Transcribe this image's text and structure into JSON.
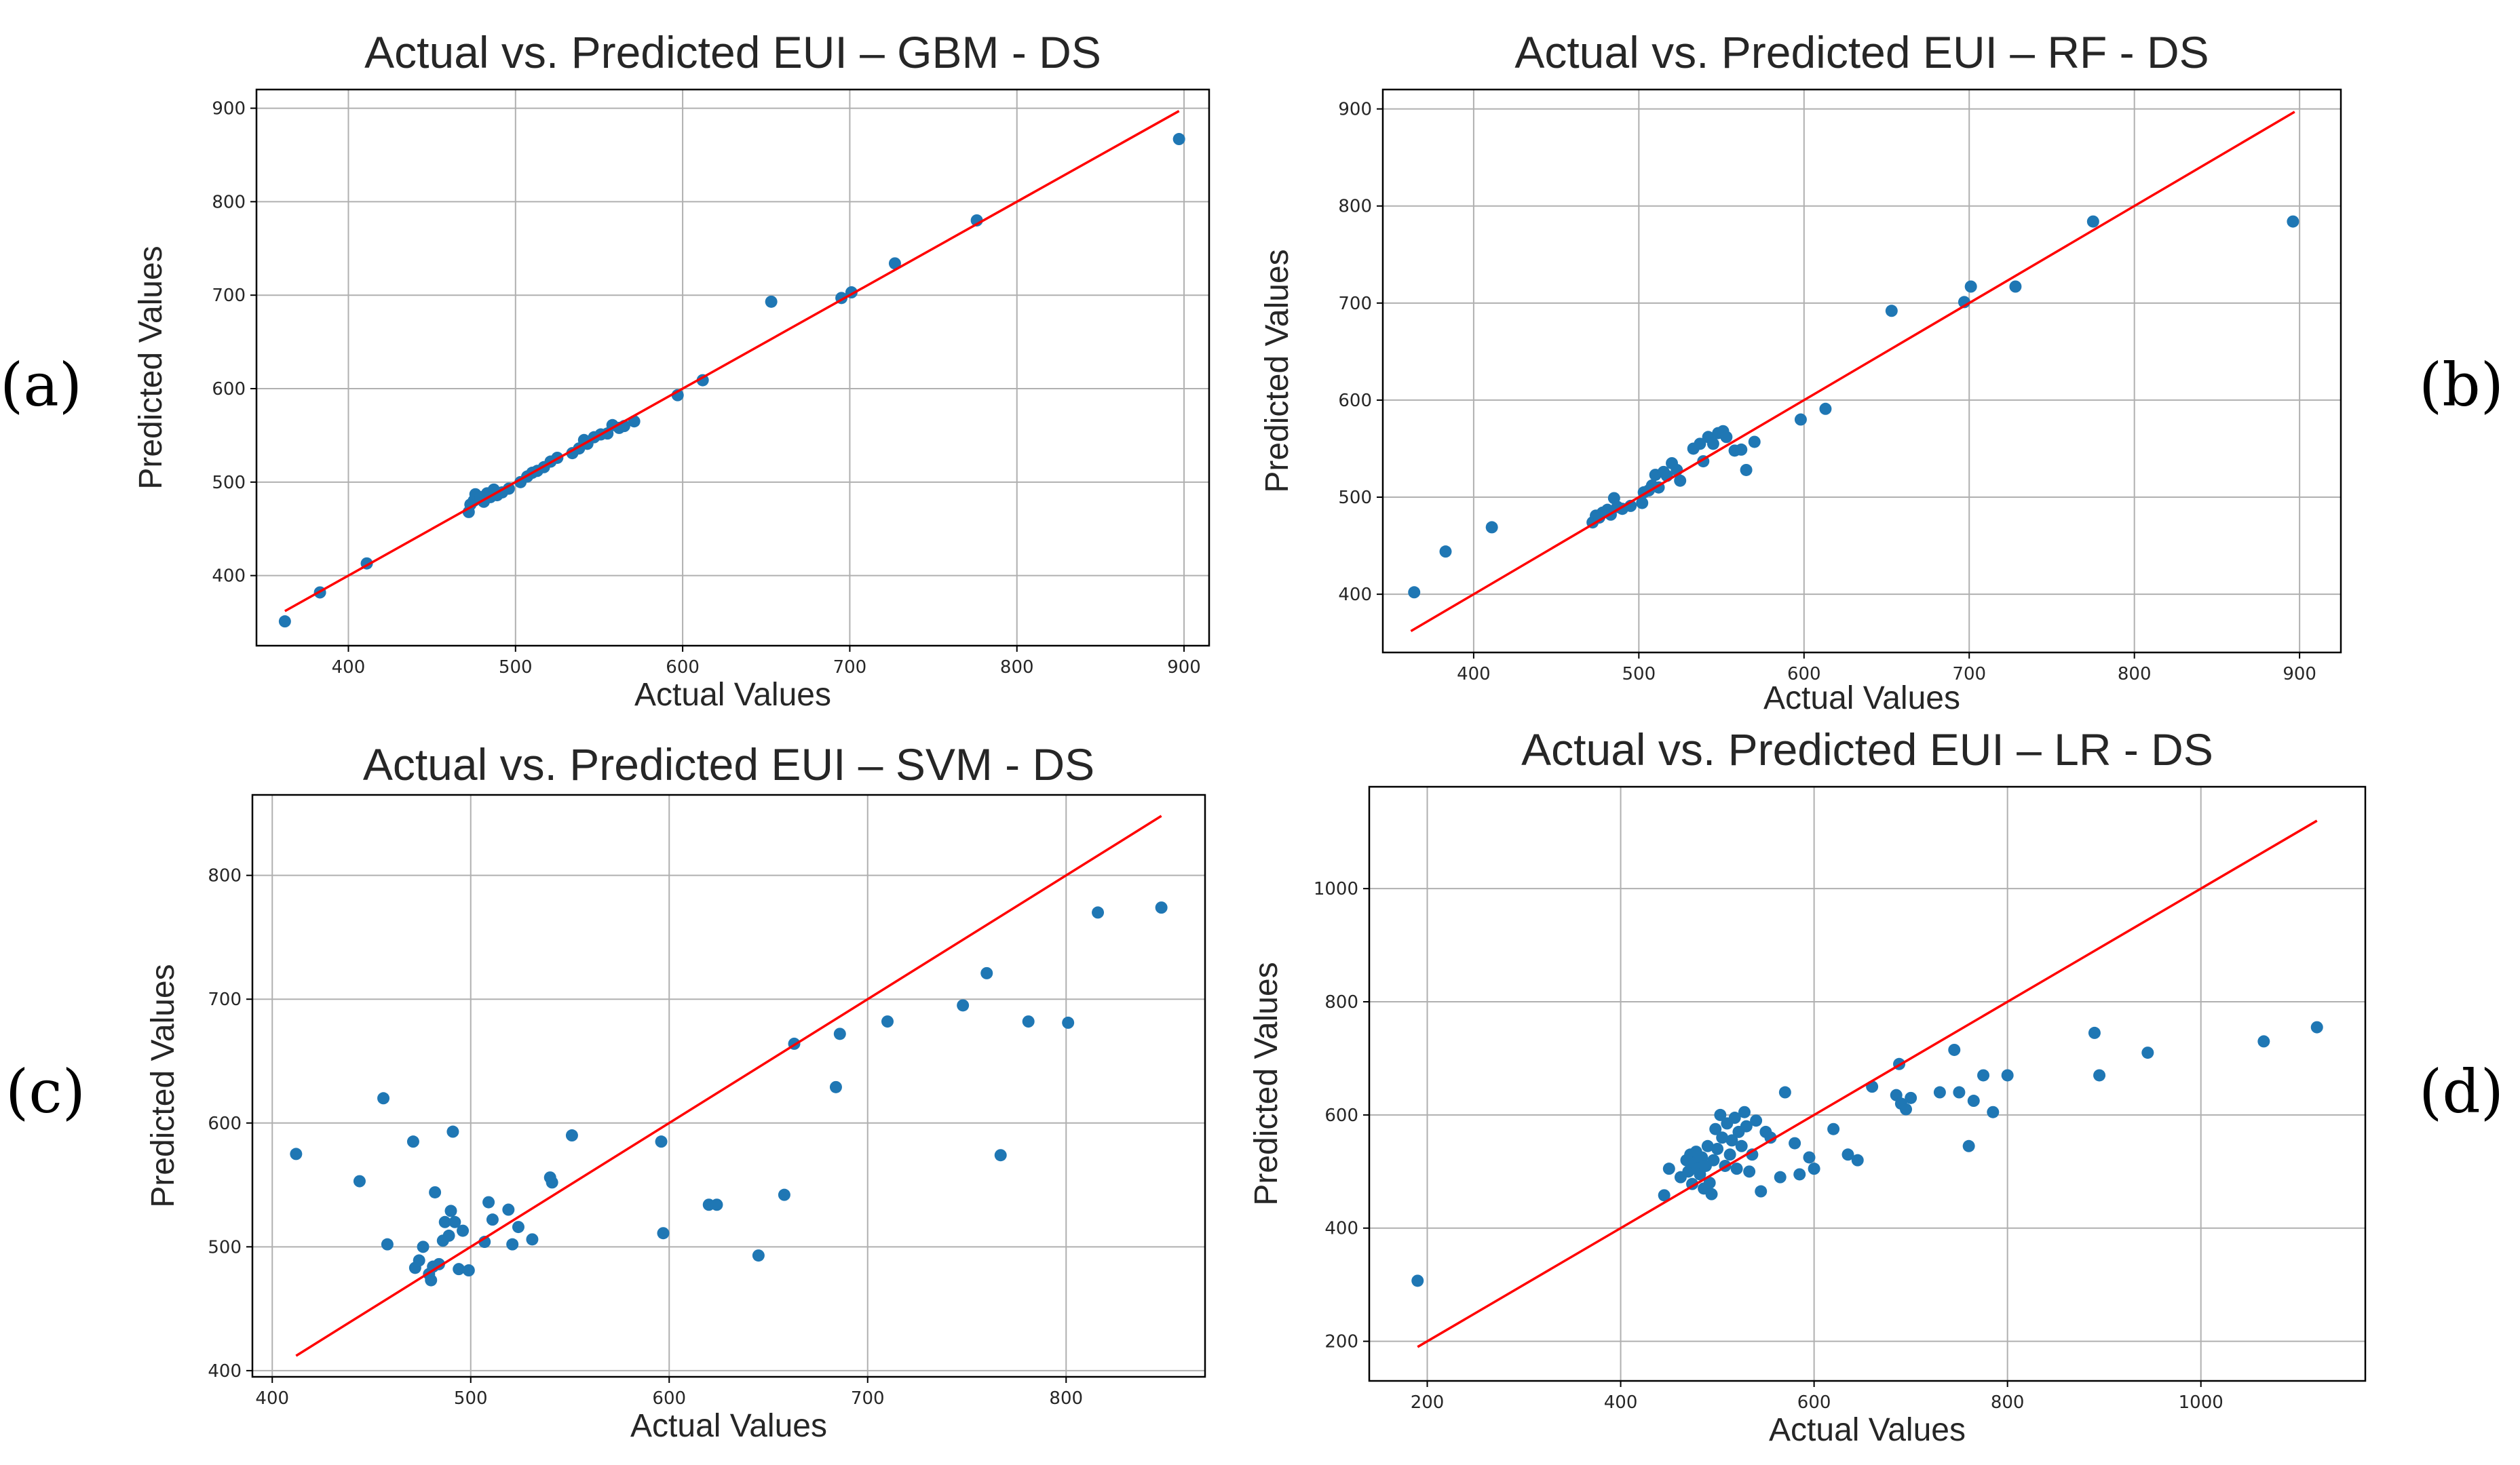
{
  "figure": {
    "panel_labels": [
      "(a)",
      "(b)",
      "(c)",
      "(d)"
    ],
    "colors": {
      "points": "#1f77b4",
      "ideal_line": "#ff0000",
      "grid": "#b0b0b0",
      "axes": "#000000",
      "text": "#262626"
    }
  },
  "chart_data": [
    {
      "type": "scatter",
      "title": "Actual vs. Predicted EUI – GBM - DS",
      "xlabel": "Actual Values",
      "ylabel": "Predicted Values",
      "xlim": [
        345,
        915
      ],
      "ylim": [
        325,
        920
      ],
      "xticks": [
        400,
        500,
        600,
        700,
        800,
        900
      ],
      "yticks": [
        400,
        500,
        600,
        700,
        800,
        900
      ],
      "grid": true,
      "line": {
        "x": [
          362,
          897
        ],
        "y": [
          362,
          897
        ]
      },
      "points": [
        [
          362,
          351
        ],
        [
          383,
          382
        ],
        [
          411,
          413
        ],
        [
          472,
          468
        ],
        [
          473,
          476
        ],
        [
          475,
          480
        ],
        [
          476,
          487
        ],
        [
          479,
          484
        ],
        [
          481,
          479
        ],
        [
          483,
          488
        ],
        [
          485,
          484
        ],
        [
          487,
          492
        ],
        [
          489,
          486
        ],
        [
          492,
          489
        ],
        [
          496,
          493
        ],
        [
          503,
          500
        ],
        [
          507,
          506
        ],
        [
          510,
          510
        ],
        [
          513,
          512
        ],
        [
          517,
          516
        ],
        [
          521,
          522
        ],
        [
          525,
          526
        ],
        [
          534,
          531
        ],
        [
          538,
          536
        ],
        [
          541,
          545
        ],
        [
          543,
          541
        ],
        [
          547,
          548
        ],
        [
          551,
          551
        ],
        [
          555,
          552
        ],
        [
          558,
          561
        ],
        [
          562,
          558
        ],
        [
          565,
          560
        ],
        [
          571,
          565
        ],
        [
          597,
          593
        ],
        [
          612,
          609
        ],
        [
          653,
          693
        ],
        [
          695,
          697
        ],
        [
          701,
          703
        ],
        [
          727,
          734
        ],
        [
          776,
          780
        ],
        [
          897,
          867
        ]
      ]
    },
    {
      "type": "scatter",
      "title": "Actual vs. Predicted EUI – RF - DS",
      "xlabel": "Actual Values",
      "ylabel": "Predicted Values",
      "xlim": [
        345,
        925
      ],
      "ylim": [
        340,
        920
      ],
      "xticks": [
        400,
        500,
        600,
        700,
        800,
        900
      ],
      "yticks": [
        400,
        500,
        600,
        700,
        800,
        900
      ],
      "grid": true,
      "line": {
        "x": [
          362,
          897
        ],
        "y": [
          362,
          897
        ]
      },
      "points": [
        [
          364,
          402
        ],
        [
          383,
          444
        ],
        [
          411,
          469
        ],
        [
          472,
          474
        ],
        [
          474,
          481
        ],
        [
          476,
          479
        ],
        [
          478,
          484
        ],
        [
          481,
          487
        ],
        [
          483,
          482
        ],
        [
          485,
          499
        ],
        [
          487,
          490
        ],
        [
          490,
          488
        ],
        [
          495,
          491
        ],
        [
          502,
          494
        ],
        [
          503,
          505
        ],
        [
          506,
          507
        ],
        [
          508,
          512
        ],
        [
          510,
          523
        ],
        [
          512,
          510
        ],
        [
          515,
          526
        ],
        [
          517,
          522
        ],
        [
          520,
          535
        ],
        [
          523,
          528
        ],
        [
          525,
          517
        ],
        [
          533,
          550
        ],
        [
          537,
          555
        ],
        [
          539,
          537
        ],
        [
          542,
          562
        ],
        [
          545,
          555
        ],
        [
          548,
          566
        ],
        [
          551,
          568
        ],
        [
          553,
          562
        ],
        [
          558,
          548
        ],
        [
          562,
          549
        ],
        [
          565,
          528
        ],
        [
          570,
          557
        ],
        [
          598,
          580
        ],
        [
          613,
          591
        ],
        [
          653,
          692
        ],
        [
          697,
          701
        ],
        [
          701,
          717
        ],
        [
          728,
          717
        ],
        [
          775,
          784
        ],
        [
          896,
          784
        ]
      ]
    },
    {
      "type": "scatter",
      "title": "Actual vs. Predicted EUI – SVM - DS",
      "xlabel": "Actual Values",
      "ylabel": "Predicted Values",
      "xlim": [
        390,
        870
      ],
      "ylim": [
        395,
        865
      ],
      "xticks": [
        400,
        500,
        600,
        700,
        800
      ],
      "yticks": [
        400,
        500,
        600,
        700,
        800
      ],
      "grid": true,
      "line": {
        "x": [
          412,
          848
        ],
        "y": [
          412,
          848
        ]
      },
      "points": [
        [
          412,
          575
        ],
        [
          444,
          553
        ],
        [
          456,
          620
        ],
        [
          458,
          502
        ],
        [
          471,
          585
        ],
        [
          472,
          483
        ],
        [
          474,
          489
        ],
        [
          476,
          500
        ],
        [
          479,
          478
        ],
        [
          480,
          473
        ],
        [
          481,
          484
        ],
        [
          482,
          544
        ],
        [
          484,
          486
        ],
        [
          486,
          505
        ],
        [
          487,
          520
        ],
        [
          489,
          509
        ],
        [
          490,
          529
        ],
        [
          491,
          593
        ],
        [
          492,
          520
        ],
        [
          494,
          482
        ],
        [
          496,
          513
        ],
        [
          499,
          481
        ],
        [
          507,
          504
        ],
        [
          509,
          536
        ],
        [
          511,
          522
        ],
        [
          519,
          530
        ],
        [
          521,
          502
        ],
        [
          524,
          516
        ],
        [
          531,
          506
        ],
        [
          540,
          556
        ],
        [
          541,
          552
        ],
        [
          551,
          590
        ],
        [
          596,
          585
        ],
        [
          597,
          511
        ],
        [
          620,
          534
        ],
        [
          624,
          534
        ],
        [
          645,
          493
        ],
        [
          658,
          542
        ],
        [
          663,
          664
        ],
        [
          684,
          629
        ],
        [
          686,
          672
        ],
        [
          710,
          682
        ],
        [
          748,
          695
        ],
        [
          760,
          721
        ],
        [
          767,
          574
        ],
        [
          781,
          682
        ],
        [
          801,
          681
        ],
        [
          816,
          770
        ],
        [
          848,
          774
        ]
      ]
    },
    {
      "type": "scatter",
      "title": "Actual vs. Predicted EUI – LR - DS",
      "xlabel": "Actual Values",
      "ylabel": "Predicted Values",
      "xlim": [
        140,
        1170
      ],
      "ylim": [
        130,
        1180
      ],
      "xticks": [
        200,
        400,
        600,
        800,
        1000
      ],
      "yticks": [
        200,
        400,
        600,
        800,
        1000
      ],
      "grid": true,
      "line": {
        "x": [
          190,
          1120
        ],
        "y": [
          190,
          1120
        ]
      },
      "points": [
        [
          190,
          307
        ],
        [
          445,
          458
        ],
        [
          450,
          505
        ],
        [
          462,
          490
        ],
        [
          468,
          520
        ],
        [
          470,
          500
        ],
        [
          472,
          530
        ],
        [
          474,
          478
        ],
        [
          476,
          515
        ],
        [
          478,
          535
        ],
        [
          480,
          505
        ],
        [
          482,
          495
        ],
        [
          484,
          525
        ],
        [
          486,
          470
        ],
        [
          488,
          510
        ],
        [
          490,
          545
        ],
        [
          492,
          480
        ],
        [
          494,
          460
        ],
        [
          496,
          520
        ],
        [
          498,
          575
        ],
        [
          500,
          540
        ],
        [
          503,
          600
        ],
        [
          505,
          560
        ],
        [
          508,
          510
        ],
        [
          510,
          585
        ],
        [
          513,
          530
        ],
        [
          515,
          555
        ],
        [
          518,
          595
        ],
        [
          520,
          505
        ],
        [
          522,
          570
        ],
        [
          525,
          545
        ],
        [
          528,
          605
        ],
        [
          530,
          580
        ],
        [
          533,
          500
        ],
        [
          536,
          530
        ],
        [
          540,
          590
        ],
        [
          545,
          465
        ],
        [
          550,
          570
        ],
        [
          555,
          560
        ],
        [
          565,
          490
        ],
        [
          570,
          640
        ],
        [
          580,
          550
        ],
        [
          585,
          495
        ],
        [
          595,
          525
        ],
        [
          600,
          505
        ],
        [
          620,
          575
        ],
        [
          635,
          530
        ],
        [
          645,
          520
        ],
        [
          660,
          650
        ],
        [
          685,
          635
        ],
        [
          688,
          690
        ],
        [
          690,
          620
        ],
        [
          695,
          610
        ],
        [
          700,
          630
        ],
        [
          730,
          640
        ],
        [
          745,
          715
        ],
        [
          750,
          640
        ],
        [
          760,
          545
        ],
        [
          765,
          625
        ],
        [
          775,
          670
        ],
        [
          785,
          605
        ],
        [
          800,
          670
        ],
        [
          890,
          745
        ],
        [
          895,
          670
        ],
        [
          945,
          710
        ],
        [
          1065,
          730
        ],
        [
          1120,
          755
        ]
      ]
    }
  ]
}
